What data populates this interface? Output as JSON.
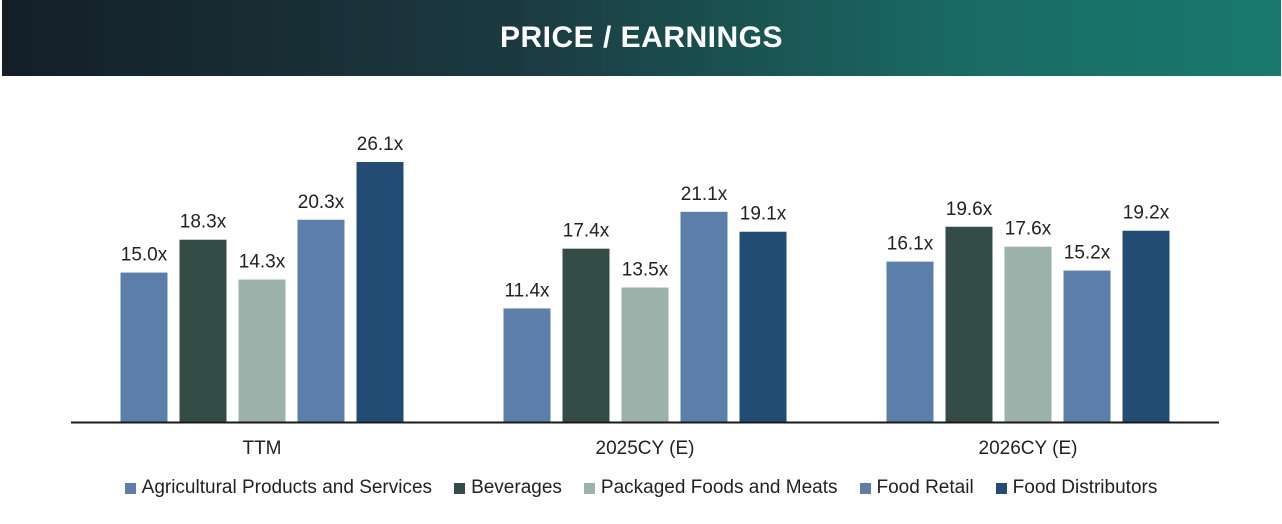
{
  "header": {
    "title": "PRICE / EARNINGS"
  },
  "chart_data": {
    "type": "bar",
    "title": "PRICE / EARNINGS",
    "categories": [
      "TTM",
      "2025CY (E)",
      "2026CY (E)"
    ],
    "series": [
      {
        "name": "Agricultural Products and Services",
        "values": [
          15.0,
          11.4,
          16.1
        ],
        "labels": [
          "15.0x",
          "11.4x",
          "16.1x"
        ],
        "color": "#5b7eab"
      },
      {
        "name": "Beverages",
        "values": [
          18.3,
          17.4,
          19.6
        ],
        "labels": [
          "18.3x",
          "17.4x",
          "19.6x"
        ],
        "color": "#344c46"
      },
      {
        "name": "Packaged Foods and Meats",
        "values": [
          14.3,
          13.5,
          17.6
        ],
        "labels": [
          "14.3x",
          "13.5x",
          "17.6x"
        ],
        "color": "#9ab2aa"
      },
      {
        "name": "Food Retail",
        "values": [
          20.3,
          21.1,
          15.2
        ],
        "labels": [
          "20.3x",
          "21.1x",
          "15.2x"
        ],
        "color": "#5b7eab"
      },
      {
        "name": "Food Distributors",
        "values": [
          26.1,
          19.1,
          19.2
        ],
        "labels": [
          "26.1x",
          "19.1x",
          "19.2x"
        ],
        "color": "#234c75"
      }
    ],
    "ylim": [
      0,
      28
    ],
    "grid": false,
    "legend_position": "bottom"
  }
}
